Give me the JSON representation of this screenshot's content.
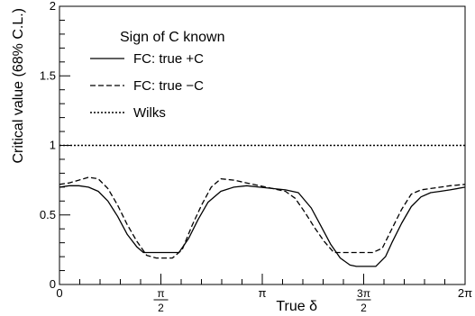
{
  "chart_data": {
    "type": "line",
    "xlabel": "True δ",
    "ylabel": "Critical value (68% C.L.)",
    "xlim": [
      0,
      6.2832
    ],
    "ylim": [
      0,
      2
    ],
    "x_ticks": [
      {
        "value": 0,
        "label": "0",
        "kind": "plain"
      },
      {
        "value": 1.5708,
        "label": "π/2",
        "num": "π",
        "den": "2",
        "kind": "frac"
      },
      {
        "value": 3.1416,
        "label": "π",
        "kind": "plain"
      },
      {
        "value": 4.7124,
        "label": "3π/2",
        "num": "3π",
        "den": "2",
        "kind": "frac"
      },
      {
        "value": 6.2832,
        "label": "2π",
        "kind": "plain"
      }
    ],
    "y_ticks": [
      {
        "value": 0,
        "label": "0"
      },
      {
        "value": 0.5,
        "label": "0.5"
      },
      {
        "value": 1,
        "label": "1"
      },
      {
        "value": 1.5,
        "label": "1.5"
      },
      {
        "value": 2,
        "label": "2"
      }
    ],
    "legend": {
      "title": "Sign of C known",
      "placement": "top-left"
    },
    "series": [
      {
        "name": "FC: true +C",
        "style": "solid",
        "x": [
          0,
          0.15,
          0.3,
          0.45,
          0.6,
          0.75,
          0.9,
          1.05,
          1.2,
          1.3,
          1.45,
          1.6,
          1.75,
          1.85,
          2.0,
          2.15,
          2.3,
          2.5,
          2.7,
          2.9,
          3.1,
          3.3,
          3.5,
          3.7,
          3.9,
          4.05,
          4.2,
          4.35,
          4.5,
          4.6,
          4.75,
          4.9,
          5.05,
          5.15,
          5.3,
          5.45,
          5.6,
          5.75,
          5.9,
          6.05,
          6.2832
        ],
        "y": [
          0.7,
          0.71,
          0.71,
          0.7,
          0.67,
          0.6,
          0.49,
          0.36,
          0.27,
          0.23,
          0.23,
          0.23,
          0.23,
          0.23,
          0.33,
          0.47,
          0.59,
          0.67,
          0.7,
          0.71,
          0.7,
          0.69,
          0.68,
          0.66,
          0.55,
          0.42,
          0.29,
          0.19,
          0.14,
          0.13,
          0.13,
          0.13,
          0.2,
          0.3,
          0.44,
          0.56,
          0.63,
          0.66,
          0.67,
          0.68,
          0.7
        ]
      },
      {
        "name": "FC: true −C",
        "style": "dashed",
        "x": [
          0,
          0.15,
          0.3,
          0.45,
          0.6,
          0.75,
          0.9,
          1.05,
          1.2,
          1.35,
          1.5,
          1.6,
          1.75,
          1.9,
          2.05,
          2.2,
          2.35,
          2.5,
          2.7,
          2.9,
          3.1,
          3.3,
          3.5,
          3.65,
          3.8,
          3.95,
          4.1,
          4.25,
          4.4,
          4.55,
          4.7,
          4.85,
          5.0,
          5.15,
          5.3,
          5.45,
          5.6,
          5.75,
          5.9,
          6.05,
          6.2832
        ],
        "y": [
          0.72,
          0.73,
          0.75,
          0.77,
          0.76,
          0.69,
          0.57,
          0.43,
          0.31,
          0.21,
          0.19,
          0.19,
          0.19,
          0.25,
          0.42,
          0.57,
          0.7,
          0.76,
          0.75,
          0.73,
          0.71,
          0.69,
          0.67,
          0.62,
          0.52,
          0.41,
          0.31,
          0.23,
          0.23,
          0.23,
          0.23,
          0.23,
          0.26,
          0.4,
          0.54,
          0.65,
          0.68,
          0.69,
          0.7,
          0.71,
          0.72
        ]
      },
      {
        "name": "Wilks",
        "style": "dotted",
        "x": [
          0,
          6.2832
        ],
        "y": [
          1,
          1
        ]
      }
    ]
  }
}
